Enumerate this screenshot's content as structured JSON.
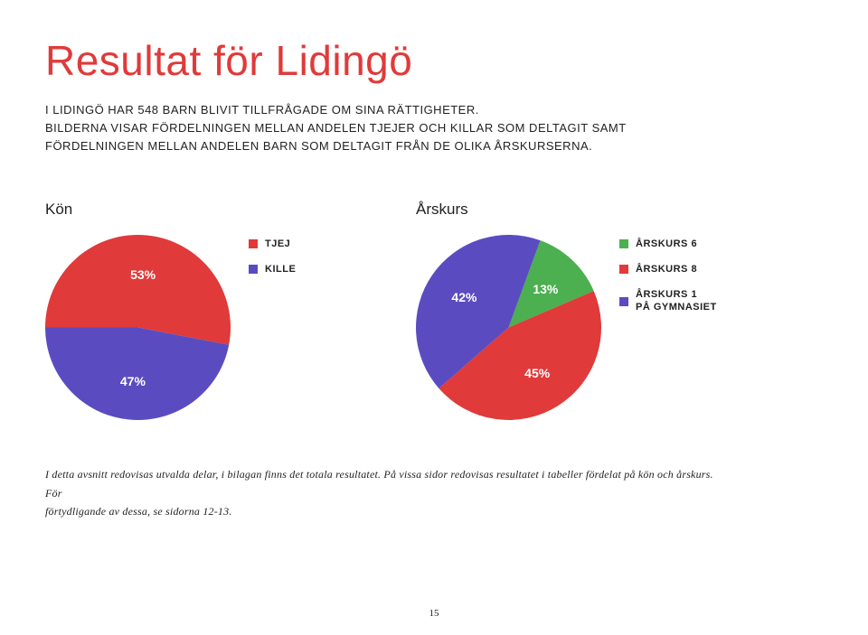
{
  "title": {
    "text": "Resultat för Lidingö",
    "color": "#e03a3a",
    "fontsize": 46
  },
  "intro": {
    "line1": "I LIDINGÖ HAR 548 BARN BLIVIT TILLFRÅGADE OM SINA RÄTTIGHETER.",
    "line2": "BILDERNA VISAR FÖRDELNINGEN MELLAN ANDELEN TJEJER OCH KILLAR SOM DELTAGIT SAMT FÖRDELNINGEN MELLAN ANDELEN BARN SOM DELTAGIT FRÅN DE OLIKA ÅRSKUR­SERNA."
  },
  "kon_chart": {
    "type": "pie",
    "title": "Kön",
    "size": 205,
    "slices": [
      {
        "label": "TJEJ",
        "value": 53,
        "pct_label": "53%",
        "color": "#e03a3a"
      },
      {
        "label": "KILLE",
        "value": 47,
        "pct_label": "47%",
        "color": "#5a4cc0"
      }
    ],
    "start_angle_deg": 180,
    "label_fontsize": 14,
    "legend_fontsize": 11
  },
  "arskurs_chart": {
    "type": "pie",
    "title": "Årskurs",
    "size": 205,
    "slices": [
      {
        "label": "ÅRSKURS 6",
        "value": 13,
        "pct_label": "13%",
        "color": "#4caf50"
      },
      {
        "label": "ÅRSKURS 8",
        "value": 45,
        "pct_label": "45%",
        "color": "#e03a3a"
      },
      {
        "label": "ÅRSKURS 1 PÅ GYMNASIET",
        "value": 42,
        "pct_label": "42%",
        "color": "#5a4cc0"
      }
    ],
    "start_angle_deg": -70,
    "label_fontsize": 14,
    "legend_fontsize": 11
  },
  "footnote": {
    "line1": "I detta avsnitt redovisas utvalda delar, i bilagan finns det totala resultatet. På vissa sidor redovisas resultatet i tabeller fördelat på kön och årskurs. För",
    "line2": "förtydligande av dessa, se sidorna 12-13."
  },
  "page_number": "15"
}
